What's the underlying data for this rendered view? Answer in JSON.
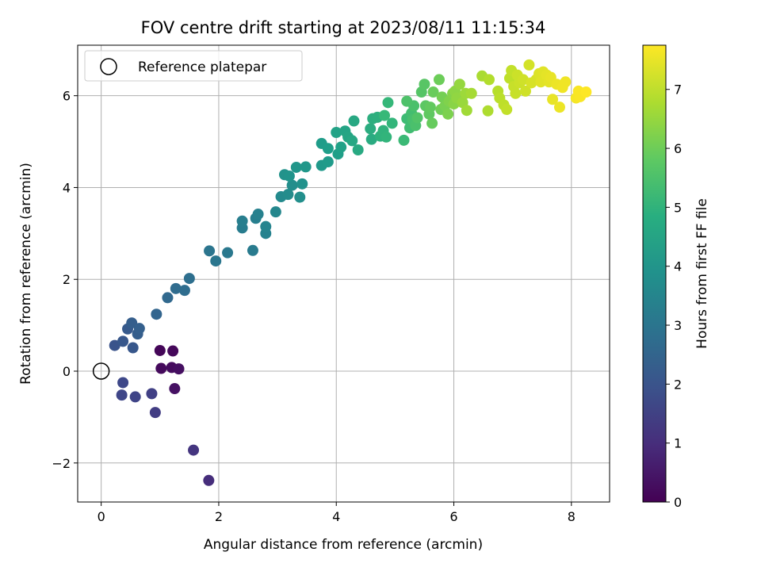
{
  "chart_data": {
    "type": "scatter",
    "title": "FOV centre drift starting at 2023/08/11 11:15:34",
    "xlabel": "Angular distance from reference (arcmin)",
    "ylabel": "Rotation from reference (arcmin)",
    "xlim": [
      -0.4,
      8.65
    ],
    "ylim": [
      -2.85,
      7.1
    ],
    "xticks": [
      0,
      2,
      4,
      6,
      8
    ],
    "yticks": [
      -2,
      0,
      2,
      4,
      6
    ],
    "xtick_labels": [
      "0",
      "2",
      "4",
      "6",
      "8"
    ],
    "ytick_labels": [
      "−2",
      "0",
      "2",
      "4",
      "6"
    ],
    "grid": true,
    "legend": {
      "placement": "top-left",
      "label": "Reference platepar"
    },
    "reference_point": {
      "x": 0,
      "y": 0
    },
    "colorbar": {
      "label": "Hours from first FF file",
      "cmap": "viridis",
      "range": [
        0,
        7.75
      ],
      "ticks": [
        0,
        1,
        2,
        3,
        4,
        5,
        6,
        7
      ],
      "tick_labels": [
        "0",
        "1",
        "2",
        "3",
        "4",
        "5",
        "6",
        "7"
      ]
    },
    "points": [
      {
        "x": 1.0,
        "y": 0.45,
        "c": 0.1
      },
      {
        "x": 1.22,
        "y": 0.44,
        "c": 0.15
      },
      {
        "x": 1.02,
        "y": 0.06,
        "c": 0.2
      },
      {
        "x": 1.2,
        "y": 0.08,
        "c": 0.25
      },
      {
        "x": 1.32,
        "y": 0.05,
        "c": 0.3
      },
      {
        "x": 1.25,
        "y": -0.38,
        "c": 0.35
      },
      {
        "x": 1.83,
        "y": -2.38,
        "c": 1.0
      },
      {
        "x": 1.57,
        "y": -1.72,
        "c": 1.2
      },
      {
        "x": 0.92,
        "y": -0.9,
        "c": 1.4
      },
      {
        "x": 0.86,
        "y": -0.49,
        "c": 1.5
      },
      {
        "x": 0.58,
        "y": -0.56,
        "c": 1.6
      },
      {
        "x": 0.35,
        "y": -0.52,
        "c": 1.65
      },
      {
        "x": 0.37,
        "y": -0.25,
        "c": 1.7
      },
      {
        "x": 0.23,
        "y": 0.56,
        "c": 2.0
      },
      {
        "x": 0.37,
        "y": 0.65,
        "c": 2.1
      },
      {
        "x": 0.54,
        "y": 0.51,
        "c": 2.1
      },
      {
        "x": 0.45,
        "y": 0.92,
        "c": 2.2
      },
      {
        "x": 0.52,
        "y": 1.05,
        "c": 2.3
      },
      {
        "x": 0.62,
        "y": 0.81,
        "c": 2.3
      },
      {
        "x": 0.65,
        "y": 0.93,
        "c": 2.35
      },
      {
        "x": 0.94,
        "y": 1.24,
        "c": 2.5
      },
      {
        "x": 1.13,
        "y": 1.6,
        "c": 2.6
      },
      {
        "x": 1.27,
        "y": 1.8,
        "c": 2.7
      },
      {
        "x": 1.42,
        "y": 1.76,
        "c": 2.75
      },
      {
        "x": 1.5,
        "y": 2.02,
        "c": 2.8
      },
      {
        "x": 1.84,
        "y": 2.62,
        "c": 3.0
      },
      {
        "x": 1.95,
        "y": 2.4,
        "c": 3.05
      },
      {
        "x": 2.15,
        "y": 2.58,
        "c": 3.1
      },
      {
        "x": 2.58,
        "y": 2.63,
        "c": 3.2
      },
      {
        "x": 2.4,
        "y": 3.12,
        "c": 3.25
      },
      {
        "x": 2.4,
        "y": 3.27,
        "c": 3.3
      },
      {
        "x": 2.63,
        "y": 3.33,
        "c": 3.35
      },
      {
        "x": 2.67,
        "y": 3.42,
        "c": 3.4
      },
      {
        "x": 2.8,
        "y": 3.0,
        "c": 3.45
      },
      {
        "x": 2.8,
        "y": 3.15,
        "c": 3.5
      },
      {
        "x": 2.97,
        "y": 3.47,
        "c": 3.6
      },
      {
        "x": 3.06,
        "y": 3.8,
        "c": 3.7
      },
      {
        "x": 3.18,
        "y": 3.85,
        "c": 3.75
      },
      {
        "x": 3.25,
        "y": 4.05,
        "c": 3.8
      },
      {
        "x": 3.38,
        "y": 3.79,
        "c": 3.85
      },
      {
        "x": 3.42,
        "y": 4.08,
        "c": 3.9
      },
      {
        "x": 3.12,
        "y": 4.28,
        "c": 3.95
      },
      {
        "x": 3.2,
        "y": 4.25,
        "c": 4.0
      },
      {
        "x": 3.32,
        "y": 4.44,
        "c": 4.05
      },
      {
        "x": 3.48,
        "y": 4.45,
        "c": 4.1
      },
      {
        "x": 3.75,
        "y": 4.48,
        "c": 4.15
      },
      {
        "x": 3.86,
        "y": 4.56,
        "c": 4.2
      },
      {
        "x": 3.75,
        "y": 4.96,
        "c": 4.25
      },
      {
        "x": 3.86,
        "y": 4.85,
        "c": 4.3
      },
      {
        "x": 4.03,
        "y": 4.73,
        "c": 4.35
      },
      {
        "x": 4.08,
        "y": 4.88,
        "c": 4.4
      },
      {
        "x": 4.0,
        "y": 5.2,
        "c": 4.45
      },
      {
        "x": 4.15,
        "y": 5.23,
        "c": 4.5
      },
      {
        "x": 4.2,
        "y": 5.1,
        "c": 4.55
      },
      {
        "x": 4.27,
        "y": 5.02,
        "c": 4.6
      },
      {
        "x": 4.3,
        "y": 5.45,
        "c": 4.65
      },
      {
        "x": 4.37,
        "y": 4.82,
        "c": 4.7
      },
      {
        "x": 4.6,
        "y": 5.05,
        "c": 4.75
      },
      {
        "x": 4.58,
        "y": 5.28,
        "c": 4.8
      },
      {
        "x": 4.62,
        "y": 5.5,
        "c": 4.85
      },
      {
        "x": 4.7,
        "y": 5.53,
        "c": 4.9
      },
      {
        "x": 4.75,
        "y": 5.12,
        "c": 4.95
      },
      {
        "x": 4.8,
        "y": 5.24,
        "c": 5.0
      },
      {
        "x": 4.85,
        "y": 5.1,
        "c": 5.05
      },
      {
        "x": 4.95,
        "y": 5.4,
        "c": 5.1
      },
      {
        "x": 4.88,
        "y": 5.85,
        "c": 5.15
      },
      {
        "x": 4.82,
        "y": 5.57,
        "c": 5.2
      },
      {
        "x": 5.15,
        "y": 5.03,
        "c": 5.25
      },
      {
        "x": 5.2,
        "y": 5.5,
        "c": 5.3
      },
      {
        "x": 5.25,
        "y": 5.3,
        "c": 5.35
      },
      {
        "x": 5.28,
        "y": 5.62,
        "c": 5.4
      },
      {
        "x": 5.3,
        "y": 5.48,
        "c": 5.45
      },
      {
        "x": 5.32,
        "y": 5.78,
        "c": 5.5
      },
      {
        "x": 5.35,
        "y": 5.35,
        "c": 5.5
      },
      {
        "x": 5.2,
        "y": 5.88,
        "c": 5.55
      },
      {
        "x": 5.38,
        "y": 5.52,
        "c": 5.6
      },
      {
        "x": 5.45,
        "y": 6.08,
        "c": 5.65
      },
      {
        "x": 5.5,
        "y": 6.25,
        "c": 5.7
      },
      {
        "x": 5.52,
        "y": 5.78,
        "c": 5.75
      },
      {
        "x": 5.58,
        "y": 5.6,
        "c": 5.8
      },
      {
        "x": 5.6,
        "y": 5.75,
        "c": 5.85
      },
      {
        "x": 5.63,
        "y": 5.4,
        "c": 5.9
      },
      {
        "x": 5.65,
        "y": 6.08,
        "c": 5.95
      },
      {
        "x": 5.75,
        "y": 6.35,
        "c": 6.0
      },
      {
        "x": 5.78,
        "y": 5.7,
        "c": 6.05
      },
      {
        "x": 5.8,
        "y": 5.97,
        "c": 6.1
      },
      {
        "x": 5.85,
        "y": 5.78,
        "c": 6.15
      },
      {
        "x": 5.9,
        "y": 5.6,
        "c": 6.2
      },
      {
        "x": 5.92,
        "y": 5.88,
        "c": 6.25
      },
      {
        "x": 5.98,
        "y": 6.05,
        "c": 6.3
      },
      {
        "x": 6.0,
        "y": 5.82,
        "c": 6.35
      },
      {
        "x": 6.02,
        "y": 6.1,
        "c": 6.4
      },
      {
        "x": 6.05,
        "y": 5.95,
        "c": 6.45
      },
      {
        "x": 6.1,
        "y": 6.25,
        "c": 6.5
      },
      {
        "x": 6.15,
        "y": 5.85,
        "c": 6.55
      },
      {
        "x": 6.2,
        "y": 6.05,
        "c": 6.6
      },
      {
        "x": 6.22,
        "y": 5.68,
        "c": 6.65
      },
      {
        "x": 6.3,
        "y": 6.05,
        "c": 6.7
      },
      {
        "x": 6.48,
        "y": 6.43,
        "c": 6.75
      },
      {
        "x": 6.58,
        "y": 5.67,
        "c": 6.8
      },
      {
        "x": 6.6,
        "y": 6.35,
        "c": 6.85
      },
      {
        "x": 6.75,
        "y": 6.1,
        "c": 6.9
      },
      {
        "x": 6.78,
        "y": 5.95,
        "c": 6.95
      },
      {
        "x": 6.85,
        "y": 5.8,
        "c": 7.0
      },
      {
        "x": 6.9,
        "y": 5.7,
        "c": 7.05
      },
      {
        "x": 6.95,
        "y": 6.38,
        "c": 7.0
      },
      {
        "x": 6.98,
        "y": 6.55,
        "c": 7.05
      },
      {
        "x": 7.02,
        "y": 6.2,
        "c": 7.1
      },
      {
        "x": 7.05,
        "y": 6.05,
        "c": 7.1
      },
      {
        "x": 7.08,
        "y": 6.45,
        "c": 7.15
      },
      {
        "x": 7.12,
        "y": 6.28,
        "c": 7.15
      },
      {
        "x": 7.18,
        "y": 6.35,
        "c": 7.2
      },
      {
        "x": 7.22,
        "y": 6.1,
        "c": 7.2
      },
      {
        "x": 7.28,
        "y": 6.67,
        "c": 7.25
      },
      {
        "x": 7.32,
        "y": 6.28,
        "c": 7.3
      },
      {
        "x": 7.4,
        "y": 6.35,
        "c": 7.3
      },
      {
        "x": 7.45,
        "y": 6.48,
        "c": 7.35
      },
      {
        "x": 7.48,
        "y": 6.3,
        "c": 7.4
      },
      {
        "x": 7.52,
        "y": 6.52,
        "c": 7.4
      },
      {
        "x": 7.58,
        "y": 6.45,
        "c": 7.45
      },
      {
        "x": 7.62,
        "y": 6.3,
        "c": 7.45
      },
      {
        "x": 7.65,
        "y": 6.4,
        "c": 7.5
      },
      {
        "x": 7.68,
        "y": 5.92,
        "c": 7.5
      },
      {
        "x": 7.75,
        "y": 6.25,
        "c": 7.55
      },
      {
        "x": 7.8,
        "y": 5.75,
        "c": 7.55
      },
      {
        "x": 7.85,
        "y": 6.18,
        "c": 7.6
      },
      {
        "x": 7.9,
        "y": 6.3,
        "c": 7.6
      },
      {
        "x": 8.08,
        "y": 5.95,
        "c": 7.65
      },
      {
        "x": 8.12,
        "y": 6.1,
        "c": 7.7
      },
      {
        "x": 8.15,
        "y": 5.98,
        "c": 7.7
      },
      {
        "x": 8.25,
        "y": 6.08,
        "c": 7.75
      }
    ]
  }
}
